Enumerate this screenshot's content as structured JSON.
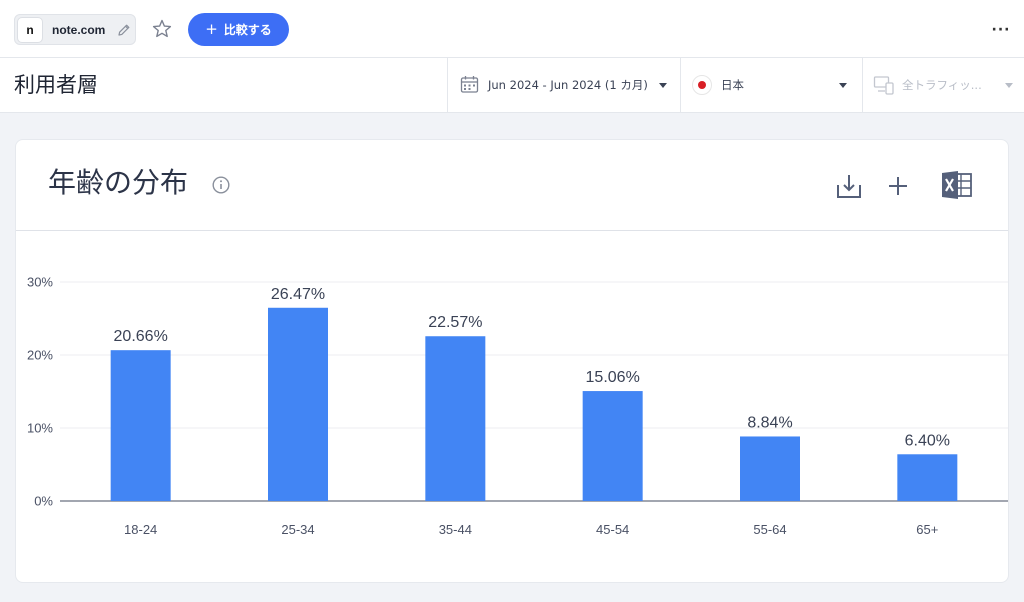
{
  "header": {
    "site_favicon_letter": "n",
    "site_name": "note.com",
    "compare_button": "比較する"
  },
  "filters": {
    "page_title": "利用者層",
    "date_range": "Jun 2024 - Jun 2024 (1 カ月)",
    "country": "日本",
    "traffic": "全トラフィッ..."
  },
  "card": {
    "title": "年齢の分布"
  },
  "icons": [
    "pencil-icon",
    "star-icon",
    "more-icon",
    "calendar-icon",
    "flag-icon",
    "devices-icon",
    "info-icon",
    "download-icon",
    "add-icon",
    "excel-icon"
  ],
  "colors": {
    "accent": "#3d6ef5",
    "bar": "#4285f4",
    "flag_red": "#d81f26"
  },
  "chart_data": {
    "type": "bar",
    "categories": [
      "18-24",
      "25-34",
      "35-44",
      "45-54",
      "55-64",
      "65+"
    ],
    "values": [
      20.66,
      26.47,
      22.57,
      15.06,
      8.84,
      6.4
    ],
    "value_labels": [
      "20.66%",
      "26.47%",
      "22.57%",
      "15.06%",
      "8.84%",
      "6.40%"
    ],
    "ylim": [
      0,
      30
    ],
    "y_ticks": [
      0,
      10,
      20,
      30
    ],
    "y_tick_labels": [
      "0%",
      "10%",
      "20%",
      "30%"
    ],
    "grid": true,
    "title": "年齢の分布",
    "xlabel": "",
    "ylabel": ""
  }
}
